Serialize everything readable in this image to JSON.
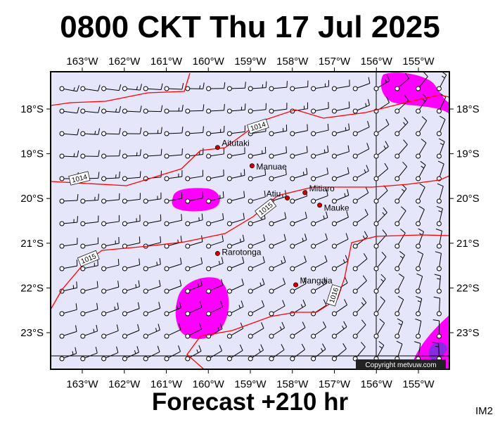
{
  "title": "0800 CKT Thu 17 Jul 2025",
  "footer": "Forecast +210 hr",
  "image_tag": "IM2",
  "copyright": "Copyright metvuw.com",
  "longitude_labels": [
    "163°W",
    "162°W",
    "161°W",
    "160°W",
    "159°W",
    "158°W",
    "157°W",
    "156°W",
    "155°W"
  ],
  "latitude_labels": [
    "18°S",
    "19°S",
    "20°S",
    "21°S",
    "22°S",
    "23°S"
  ],
  "places": [
    {
      "name": "Aitutaki",
      "lon": -159.78,
      "lat": -18.86
    },
    {
      "name": "Manuae",
      "lon": -158.96,
      "lat": -19.27
    },
    {
      "name": "Atiu",
      "lon": -158.12,
      "lat": -19.99
    },
    {
      "name": "Mitiaro",
      "lon": -157.7,
      "lat": -19.87
    },
    {
      "name": "Mauke",
      "lon": -157.35,
      "lat": -20.15
    },
    {
      "name": "Rarotonga",
      "lon": -159.78,
      "lat": -21.23
    },
    {
      "name": "Mangaia",
      "lon": -157.92,
      "lat": -21.93
    }
  ],
  "isobars": [
    {
      "label": "1014",
      "pressure_hpa": 1014
    },
    {
      "label": "1014",
      "pressure_hpa": 1014
    },
    {
      "label": "1015",
      "pressure_hpa": 1015
    },
    {
      "label": "1015",
      "pressure_hpa": 1015
    },
    {
      "label": "1016",
      "pressure_hpa": 1016
    }
  ],
  "colors": {
    "sea": "#e6e6fa",
    "isobar": "#ff0000",
    "rain": "#ff00ff",
    "heavy_rain": "#8a2be2",
    "wind_barb": "#000000",
    "place_dot": "#cc0000"
  }
}
